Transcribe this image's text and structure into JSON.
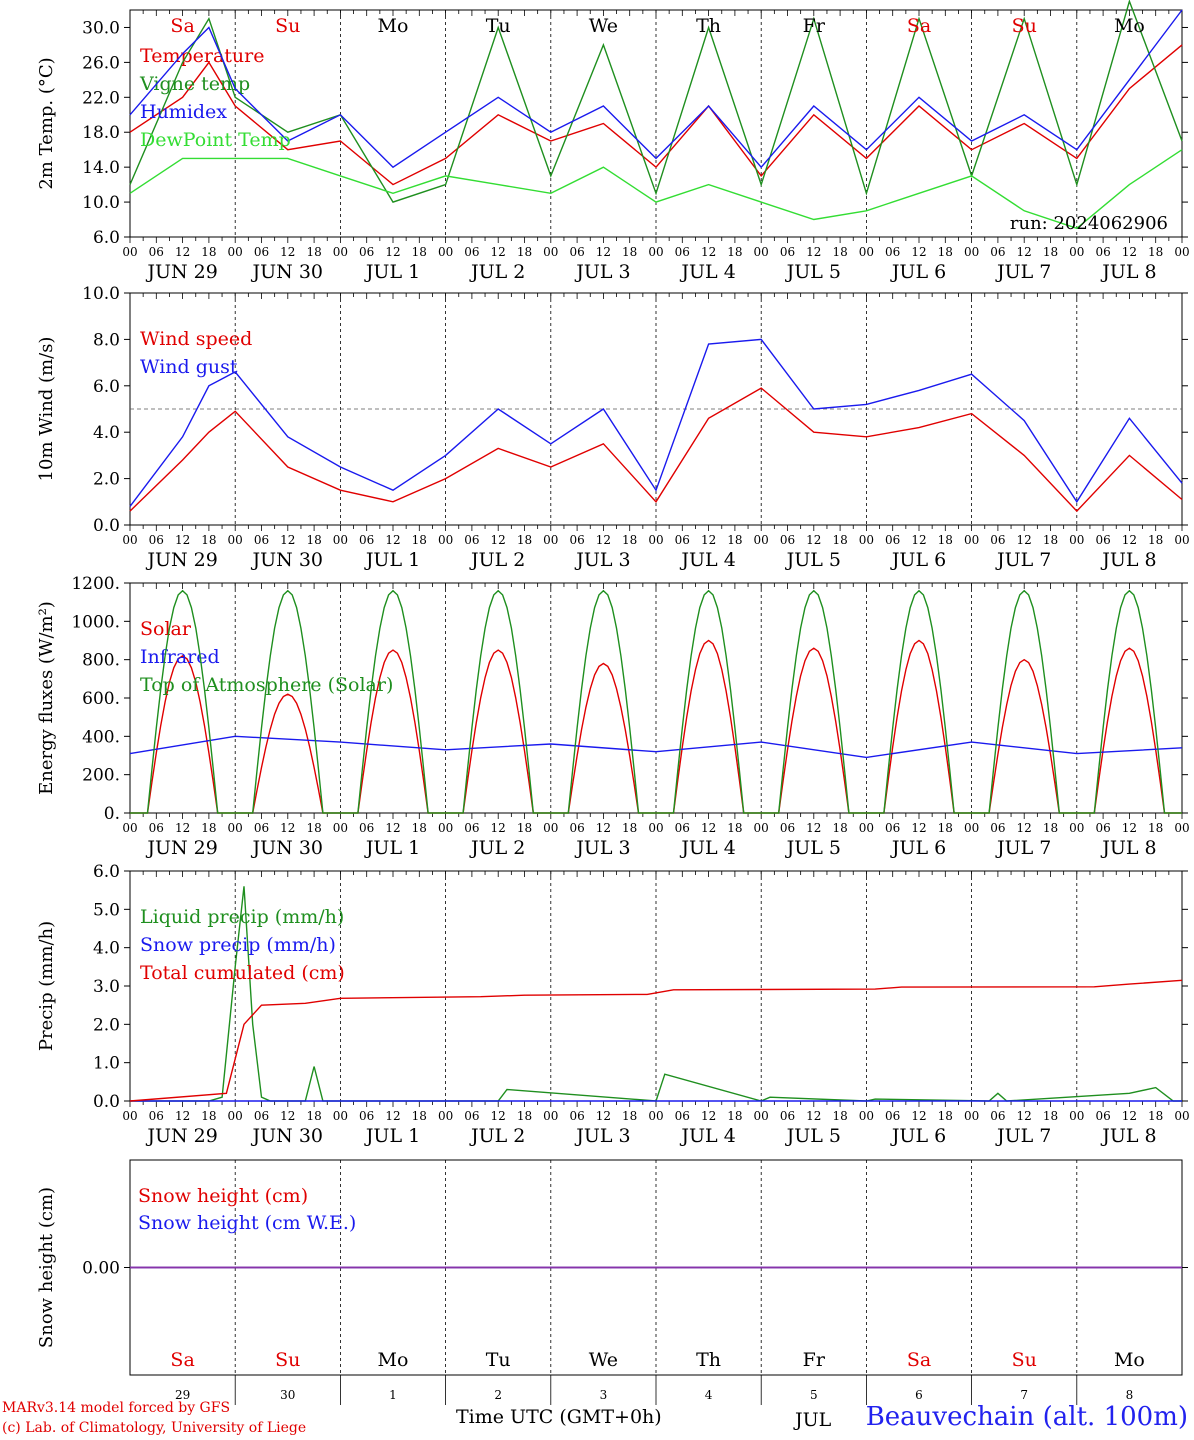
{
  "colors": {
    "red": "#e00000",
    "green": "#1f8f1f",
    "lightgreen": "#33dd33",
    "blue": "#1a1aee",
    "purple": "#8833aa",
    "black": "#000000"
  },
  "footer": {
    "model": "MARv3.14 model forced by GFS",
    "lab": "(c) Lab. of Climatology, University of Liege",
    "xlabel": "Time UTC (GMT+0h)",
    "station": "Beauvechain (alt. 100m)",
    "overlap_text": "JUL"
  },
  "chart_data": {
    "type": "line",
    "x_hour_ticks": [
      "00",
      "06",
      "12",
      "18"
    ],
    "day_labels": [
      "JUN 29",
      "JUN 30",
      "JUL 1",
      "JUL 2",
      "JUL 3",
      "JUL 4",
      "JUL 5",
      "JUL 6",
      "JUL 7",
      "JUL 8"
    ],
    "weekday_labels": [
      "Sa",
      "Su",
      "Mo",
      "Tu",
      "We",
      "Th",
      "Fr",
      "Sa",
      "Su",
      "Mo"
    ],
    "weekend_flags": [
      true,
      true,
      false,
      false,
      false,
      false,
      false,
      true,
      true,
      false
    ],
    "bottom_day_numbers": [
      "29",
      "30",
      "1",
      "2",
      "3",
      "4",
      "5",
      "6",
      "7",
      "8"
    ],
    "panels": [
      {
        "id": "temp",
        "ylabel": "2m Temp. (°C)",
        "ylim": [
          6,
          32
        ],
        "yticks": [
          "6.0",
          "10.0",
          "14.0",
          "18.0",
          "22.0",
          "26.0",
          "30.0"
        ],
        "annotation": "run: 2024062906",
        "series": [
          {
            "name": "Temperature",
            "color": "red",
            "x": [
              0,
              12,
              18,
              24,
              36,
              48,
              60,
              72,
              84,
              96,
              108,
              120,
              132,
              144,
              156,
              168,
              180,
              192,
              204,
              216,
              228,
              240
            ],
            "y": [
              18,
              22,
              26,
              21,
              16,
              17,
              12,
              15,
              20,
              17,
              19,
              14,
              21,
              13,
              20,
              15,
              21,
              16,
              19,
              15,
              23,
              28
            ]
          },
          {
            "name": "Vigne temp",
            "color": "green",
            "x": [
              0,
              12,
              18,
              24,
              36,
              48,
              60,
              72,
              84,
              96,
              108,
              120,
              132,
              144,
              156,
              168,
              180,
              192,
              204,
              216,
              228,
              240
            ],
            "y": [
              12,
              26,
              31,
              22,
              18,
              20,
              10,
              12,
              30,
              13,
              28,
              11,
              30,
              12,
              31,
              11,
              31,
              13,
              31,
              12,
              33,
              17
            ]
          },
          {
            "name": "Humidex",
            "color": "blue",
            "x": [
              0,
              12,
              18,
              24,
              36,
              48,
              60,
              72,
              84,
              96,
              108,
              120,
              132,
              144,
              156,
              168,
              180,
              192,
              204,
              216,
              228,
              240
            ],
            "y": [
              20,
              27,
              30,
              23,
              17,
              20,
              14,
              18,
              22,
              18,
              21,
              15,
              21,
              14,
              21,
              16,
              22,
              17,
              20,
              16,
              24,
              32
            ]
          },
          {
            "name": "DewPoint Temp",
            "color": "lightgreen",
            "x": [
              0,
              12,
              18,
              24,
              36,
              48,
              60,
              72,
              84,
              96,
              108,
              120,
              132,
              144,
              156,
              168,
              180,
              192,
              204,
              216,
              228,
              240
            ],
            "y": [
              11,
              15,
              15,
              15,
              15,
              13,
              11,
              13,
              12,
              11,
              14,
              10,
              12,
              10,
              8,
              9,
              11,
              13,
              9,
              7,
              12,
              16
            ]
          }
        ]
      },
      {
        "id": "wind",
        "ylabel": "10m Wind (m/s)",
        "ylim": [
          0,
          10
        ],
        "yticks": [
          "0.0",
          "2.0",
          "4.0",
          "6.0",
          "8.0",
          "10.0"
        ],
        "reference_line": 5,
        "series": [
          {
            "name": "Wind speed",
            "color": "red",
            "x": [
              0,
              12,
              18,
              24,
              36,
              48,
              60,
              72,
              84,
              96,
              108,
              120,
              132,
              144,
              156,
              168,
              180,
              192,
              204,
              216,
              228,
              240
            ],
            "y": [
              0.6,
              2.8,
              4.0,
              4.9,
              2.5,
              1.5,
              1.0,
              2.0,
              3.3,
              2.5,
              3.5,
              1.0,
              4.6,
              5.9,
              4.0,
              3.8,
              4.2,
              4.8,
              3.0,
              0.6,
              3.0,
              1.1
            ]
          },
          {
            "name": "Wind gust",
            "color": "blue",
            "x": [
              0,
              12,
              18,
              24,
              36,
              48,
              60,
              72,
              84,
              96,
              108,
              120,
              132,
              144,
              156,
              168,
              180,
              192,
              204,
              216,
              228,
              240
            ],
            "y": [
              0.8,
              3.8,
              6.0,
              6.6,
              3.8,
              2.5,
              1.5,
              3.0,
              5.0,
              3.5,
              5.0,
              1.5,
              7.8,
              8.0,
              5.0,
              5.2,
              5.8,
              6.5,
              4.5,
              1.0,
              4.6,
              1.8
            ]
          }
        ]
      },
      {
        "id": "energy",
        "ylabel": "Energy fluxes (W/m²)",
        "ylim": [
          0,
          1200
        ],
        "yticks": [
          "0.",
          "200.",
          "400.",
          "600.",
          "800.",
          "1000.",
          "1200."
        ],
        "series": [
          {
            "name": "Solar",
            "color": "red",
            "peaks": [
              820,
              620,
              850,
              850,
              780,
              900,
              860,
              900,
              800,
              860
            ]
          },
          {
            "name": "Infrared",
            "color": "blue",
            "x": [
              0,
              24,
              48,
              72,
              96,
              120,
              144,
              168,
              192,
              216,
              240
            ],
            "y": [
              310,
              400,
              370,
              330,
              360,
              320,
              370,
              290,
              370,
              310,
              340
            ]
          },
          {
            "name": "Top of Atmosphere (Solar)",
            "color": "green",
            "peaks": [
              1160,
              1160,
              1160,
              1160,
              1160,
              1160,
              1160,
              1160,
              1160,
              1160
            ]
          }
        ]
      },
      {
        "id": "precip",
        "ylabel": "Precip (mm/h)",
        "ylim": [
          0,
          6
        ],
        "yticks": [
          "0.0",
          "1.0",
          "2.0",
          "3.0",
          "4.0",
          "5.0",
          "6.0"
        ],
        "series": [
          {
            "name": "Liquid precip (mm/h)",
            "color": "green",
            "x": [
              0,
              18,
              21,
              24,
              26,
              28,
              30,
              32,
              40,
              42,
              44,
              63,
              84,
              86,
              120,
              122,
              144,
              146,
              168,
              170,
              196,
              198,
              200,
              228,
              234,
              238,
              240
            ],
            "y": [
              0,
              0,
              0.1,
              3.5,
              5.6,
              2.0,
              0.1,
              0,
              0,
              0.9,
              0,
              0,
              0,
              0.3,
              0,
              0.7,
              0,
              0.1,
              0,
              0.05,
              0,
              0.2,
              0,
              0.2,
              0.35,
              0,
              0
            ]
          },
          {
            "name": "Snow precip (mm/h)",
            "color": "blue",
            "x": [
              0,
              240
            ],
            "y": [
              0,
              0
            ]
          },
          {
            "name": "Total cumulated (cm)",
            "color": "red",
            "x": [
              0,
              22,
              26,
              30,
              40,
              48,
              80,
              90,
              118,
              124,
              170,
              176,
              220,
              228,
              240
            ],
            "y": [
              0,
              0.2,
              2.0,
              2.5,
              2.55,
              2.68,
              2.72,
              2.76,
              2.78,
              2.9,
              2.92,
              2.97,
              2.98,
              3.05,
              3.15
            ]
          }
        ]
      },
      {
        "id": "snow",
        "ylabel": "Snow height (cm)",
        "ylim": [
          -1,
          1
        ],
        "yticks": [
          "0.00"
        ],
        "series": [
          {
            "name": "Snow height (cm)",
            "color": "red",
            "x": [
              0,
              240
            ],
            "y": [
              0,
              0
            ]
          },
          {
            "name": "Snow height (cm W.E.)",
            "color": "blue",
            "x": [
              0,
              240
            ],
            "y": [
              0,
              0
            ]
          }
        ]
      }
    ]
  }
}
